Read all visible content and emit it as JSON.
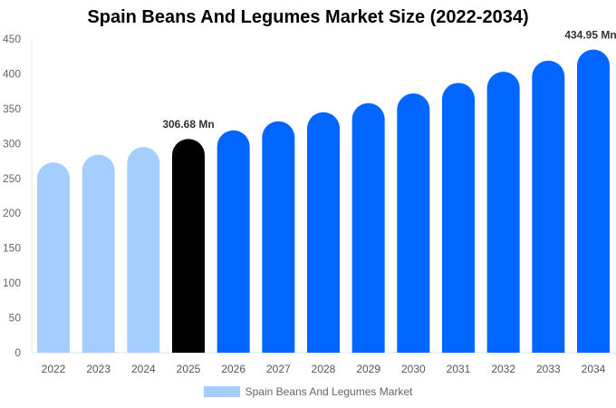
{
  "chart_data": {
    "type": "bar",
    "title": "Spain Beans And Legumes Market Size (2022-2034)",
    "categories": [
      "2022",
      "2023",
      "2024",
      "2025",
      "2026",
      "2027",
      "2028",
      "2029",
      "2030",
      "2031",
      "2032",
      "2033",
      "2034"
    ],
    "series": [
      {
        "name": "Spain Beans And Legumes Market",
        "values": [
          273,
          284,
          295,
          306.68,
          319,
          332,
          345,
          358,
          372,
          387,
          403,
          419,
          434.95
        ]
      }
    ],
    "ylim": [
      0,
      450
    ],
    "yticks": [
      0,
      50,
      100,
      150,
      200,
      250,
      300,
      350,
      400,
      450
    ],
    "annotations": [
      {
        "category": "2025",
        "label": "306.68 Mn"
      },
      {
        "category": "2034",
        "label": "434.95 Mn"
      }
    ],
    "bar_colors": {
      "historical": "#a3ceff",
      "base": "#000000",
      "forecast": "#0066ff"
    },
    "historical_categories": [
      "2022",
      "2023",
      "2024"
    ],
    "base_category": "2025",
    "legend_placement": "bottom",
    "grid": false,
    "xlabel": "",
    "ylabel": ""
  }
}
